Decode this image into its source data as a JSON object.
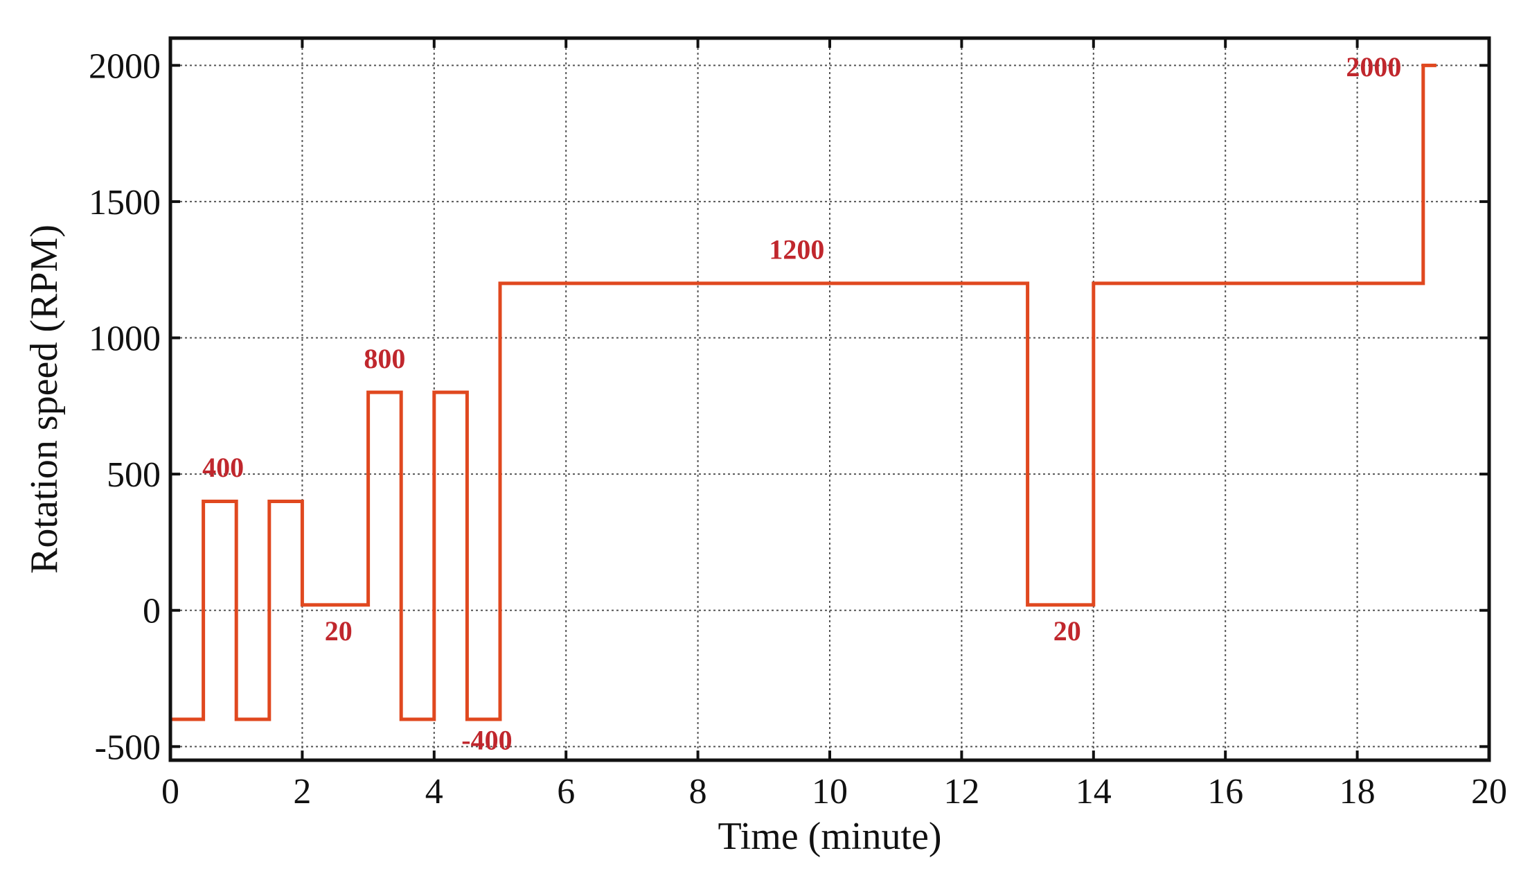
{
  "chart_data": {
    "type": "line",
    "title": "",
    "xlabel": "Time (minute)",
    "ylabel": "Rotation speed (RPM)",
    "xlim": [
      0,
      20
    ],
    "ylim": [
      -550,
      2100
    ],
    "xticks": [
      0,
      2,
      4,
      6,
      8,
      10,
      12,
      14,
      16,
      18,
      20
    ],
    "xtick_labels": [
      "0",
      "2",
      "4",
      "6",
      "8",
      "10",
      "12",
      "14",
      "16",
      "18",
      "20"
    ],
    "yticks": [
      -500,
      0,
      500,
      1000,
      1500,
      2000
    ],
    "ytick_labels": [
      "-500",
      "0",
      "500",
      "1000",
      "1500",
      "2000"
    ],
    "grid": true,
    "line_color": "#e0481f",
    "annotation_color": "#c0272d",
    "series": [
      {
        "step": "post",
        "x": [
          0,
          0.5,
          1,
          1.5,
          2,
          3,
          3.5,
          4,
          4.5,
          5,
          13,
          14,
          19,
          19.2
        ],
        "y": [
          -400,
          400,
          -400,
          400,
          20,
          800,
          -400,
          800,
          -400,
          1200,
          20,
          1200,
          2000,
          2000
        ]
      }
    ],
    "annotations": [
      {
        "text": "400",
        "x": 0.8,
        "y": 490
      },
      {
        "text": "20",
        "x": 2.55,
        "y": -110
      },
      {
        "text": "800",
        "x": 3.25,
        "y": 890
      },
      {
        "text": "-400",
        "x": 4.8,
        "y": -510
      },
      {
        "text": "1200",
        "x": 9.5,
        "y": 1290
      },
      {
        "text": "20",
        "x": 13.6,
        "y": -110
      },
      {
        "text": "2000",
        "x": 18.25,
        "y": 1960
      }
    ]
  }
}
